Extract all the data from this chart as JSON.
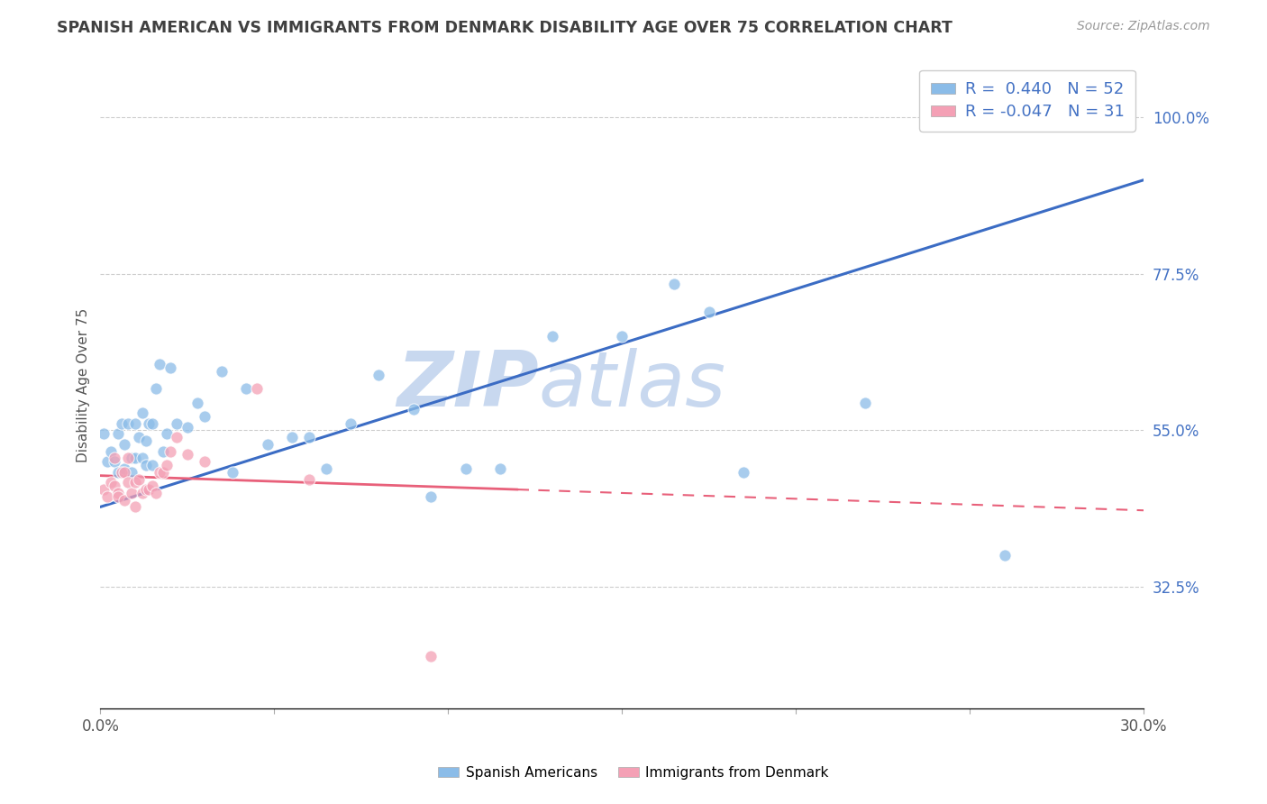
{
  "title": "SPANISH AMERICAN VS IMMIGRANTS FROM DENMARK DISABILITY AGE OVER 75 CORRELATION CHART",
  "source": "Source: ZipAtlas.com",
  "ylabel": "Disability Age Over 75",
  "xmin": 0.0,
  "xmax": 0.3,
  "ymin": 0.15,
  "ymax": 1.08,
  "r1": 0.44,
  "n1": 52,
  "r2": -0.047,
  "n2": 31,
  "color_blue": "#8BBCE8",
  "color_pink": "#F4A0B5",
  "color_blue_line": "#3B6CC4",
  "color_pink_line": "#E8607A",
  "color_text_blue": "#4472C4",
  "color_title": "#404040",
  "watermark_color": "#C8D8EF",
  "background": "#FFFFFF",
  "legend_label1": "Spanish Americans",
  "legend_label2": "Immigrants from Denmark",
  "blue_line_x0": 0.0,
  "blue_line_y0": 0.44,
  "blue_line_x1": 0.3,
  "blue_line_y1": 0.91,
  "pink_line_x0": 0.0,
  "pink_line_y0": 0.485,
  "pink_line_x1": 0.3,
  "pink_line_y1": 0.435,
  "blue_x": [
    0.001,
    0.002,
    0.003,
    0.004,
    0.005,
    0.005,
    0.006,
    0.007,
    0.007,
    0.008,
    0.009,
    0.009,
    0.01,
    0.01,
    0.011,
    0.012,
    0.012,
    0.013,
    0.013,
    0.014,
    0.015,
    0.015,
    0.016,
    0.017,
    0.018,
    0.019,
    0.02,
    0.022,
    0.025,
    0.028,
    0.03,
    0.035,
    0.038,
    0.042,
    0.048,
    0.055,
    0.06,
    0.065,
    0.072,
    0.08,
    0.09,
    0.095,
    0.105,
    0.115,
    0.13,
    0.15,
    0.165,
    0.175,
    0.185,
    0.22,
    0.26,
    0.285
  ],
  "blue_y": [
    0.545,
    0.505,
    0.52,
    0.505,
    0.545,
    0.49,
    0.56,
    0.495,
    0.53,
    0.56,
    0.49,
    0.51,
    0.51,
    0.56,
    0.54,
    0.51,
    0.575,
    0.5,
    0.535,
    0.56,
    0.5,
    0.56,
    0.61,
    0.645,
    0.52,
    0.545,
    0.64,
    0.56,
    0.555,
    0.59,
    0.57,
    0.635,
    0.49,
    0.61,
    0.53,
    0.54,
    0.54,
    0.495,
    0.56,
    0.63,
    0.58,
    0.455,
    0.495,
    0.495,
    0.685,
    0.685,
    0.76,
    0.72,
    0.49,
    0.59,
    0.37,
    1.0
  ],
  "pink_x": [
    0.001,
    0.002,
    0.003,
    0.004,
    0.004,
    0.005,
    0.005,
    0.006,
    0.007,
    0.007,
    0.008,
    0.008,
    0.009,
    0.01,
    0.01,
    0.011,
    0.012,
    0.013,
    0.014,
    0.015,
    0.016,
    0.017,
    0.018,
    0.019,
    0.02,
    0.022,
    0.025,
    0.03,
    0.045,
    0.06,
    0.095
  ],
  "pink_y": [
    0.465,
    0.455,
    0.475,
    0.47,
    0.51,
    0.46,
    0.455,
    0.49,
    0.49,
    0.45,
    0.51,
    0.475,
    0.46,
    0.475,
    0.44,
    0.48,
    0.46,
    0.465,
    0.465,
    0.47,
    0.46,
    0.49,
    0.49,
    0.5,
    0.52,
    0.54,
    0.515,
    0.505,
    0.61,
    0.48,
    0.225
  ]
}
